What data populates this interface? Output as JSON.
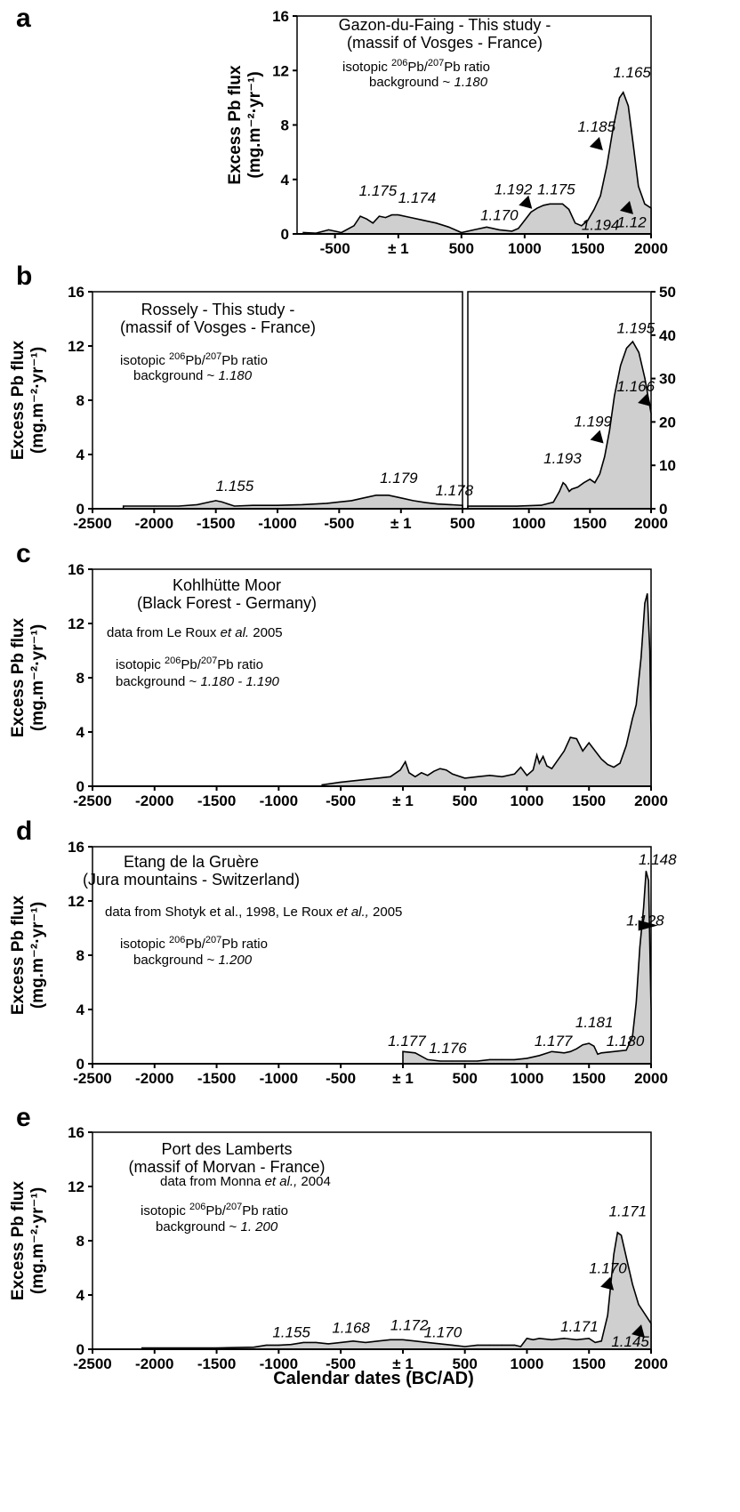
{
  "x_axis_label": "Calendar dates (BC/AD)",
  "y_axis_label_line1": "Excess Pb flux",
  "y_axis_label_line2": "(mg.m⁻²·yr⁻¹)",
  "colors": {
    "fill": "#cfcfcf",
    "line": "#000000",
    "background": "#ffffff"
  },
  "icons": [
    "triangle-arrow-icon"
  ],
  "chart_data": [
    {
      "panel": "a",
      "type": "area",
      "text_lines": [
        "Gazon-du-Faing - This study -",
        "(massif of Vosges - France)"
      ],
      "isotope_label": [
        "isotopic ",
        "206",
        "Pb/",
        "207",
        "Pb ratio"
      ],
      "background_label": [
        "background ~ ",
        "1.180"
      ],
      "ylabel": "Excess Pb flux (mg.m⁻²·yr⁻¹)",
      "xlim": [
        -800,
        2000
      ],
      "ylim": [
        0,
        16
      ],
      "yticks": [
        0,
        4,
        8,
        12,
        16
      ],
      "xticks": [
        -500,
        1,
        500,
        1000,
        1500,
        2000
      ],
      "xtick_labels": [
        "-500",
        "± 1",
        "500",
        "1000",
        "1500",
        "2000"
      ],
      "x": [
        -750,
        -650,
        -550,
        -450,
        -350,
        -300,
        -250,
        -200,
        -150,
        -100,
        -50,
        0,
        100,
        200,
        300,
        400,
        500,
        600,
        700,
        800,
        900,
        950,
        1000,
        1050,
        1100,
        1150,
        1200,
        1300,
        1350,
        1400,
        1450,
        1500,
        1550,
        1600,
        1650,
        1700,
        1750,
        1780,
        1820,
        1860,
        1900,
        1950,
        2000
      ],
      "values": [
        0.1,
        0.05,
        0.3,
        0.1,
        0.6,
        1.3,
        1.1,
        0.8,
        1.3,
        1.2,
        1.4,
        1.4,
        1.2,
        1.0,
        0.8,
        0.5,
        0.1,
        0.3,
        0.5,
        0.3,
        0.2,
        0.4,
        1.0,
        1.6,
        1.9,
        2.1,
        2.2,
        2.2,
        1.8,
        0.8,
        0.6,
        1.0,
        1.8,
        2.8,
        5.0,
        7.8,
        10.0,
        10.4,
        9.4,
        6.5,
        3.5,
        2.2,
        1.9
      ],
      "annotations": [
        {
          "text": "1.175",
          "x": -310,
          "y": 2.8
        },
        {
          "text": "1.174",
          "x": 0,
          "y": 2.3
        },
        {
          "text": "1.192",
          "x": 760,
          "y": 2.9
        },
        {
          "text": "1.175",
          "x": 1100,
          "y": 2.9
        },
        {
          "text": "1.170",
          "x": 650,
          "y": 1.0
        },
        {
          "text": "1.185",
          "x": 1420,
          "y": 7.5
        },
        {
          "text": "1.165",
          "x": 1700,
          "y": 11.5
        },
        {
          "text": "1.194",
          "x": 1450,
          "y": 0.3
        },
        {
          "text": "1.12",
          "x": 1730,
          "y": 0.5
        }
      ],
      "arrows": [
        {
          "x": 1010,
          "y": 2.3,
          "dir": "down-right"
        },
        {
          "x": 1570,
          "y": 6.6,
          "dir": "down-right"
        },
        {
          "x": 1810,
          "y": 1.9,
          "dir": "down-right"
        }
      ]
    },
    {
      "panel": "b",
      "type": "area",
      "split_panel": true,
      "text_lines": [
        "Rossely - This study -",
        "(massif of Vosges - France)"
      ],
      "isotope_label": [
        "isotopic ",
        "206",
        "Pb/",
        "207",
        "Pb ratio"
      ],
      "background_label": [
        "background ~ ",
        "1.180"
      ],
      "left": {
        "xlim": [
          -2500,
          500
        ],
        "ylim": [
          0,
          16
        ],
        "yticks": [
          0,
          4,
          8,
          12,
          16
        ],
        "xticks": [
          -2500,
          -2000,
          -1500,
          -1000,
          -500,
          1,
          500
        ],
        "xtick_labels": [
          "-2500",
          "-2000",
          "-1500",
          "-1000",
          "-500",
          "± 1",
          "500"
        ],
        "x": [
          -2250,
          -2000,
          -1800,
          -1650,
          -1550,
          -1500,
          -1450,
          -1350,
          -1200,
          -1000,
          -800,
          -600,
          -400,
          -300,
          -200,
          -100,
          0,
          100,
          200,
          300,
          400,
          500
        ],
        "values": [
          0.2,
          0.2,
          0.2,
          0.3,
          0.5,
          0.6,
          0.5,
          0.2,
          0.25,
          0.25,
          0.3,
          0.4,
          0.6,
          0.8,
          1.0,
          1.0,
          0.8,
          0.6,
          0.45,
          0.35,
          0.3,
          0.25
        ],
        "annotations": [
          {
            "text": "1.155",
            "x": -1500,
            "y": 1.3
          },
          {
            "text": "1.179",
            "x": -170,
            "y": 1.9
          },
          {
            "text": "1.178",
            "x": 280,
            "y": 1.0
          }
        ]
      },
      "right": {
        "xlim": [
          500,
          2000
        ],
        "ylim": [
          0,
          50
        ],
        "yticks": [
          0,
          10,
          20,
          30,
          40,
          50
        ],
        "xticks": [
          1000,
          1500,
          2000
        ],
        "xtick_labels": [
          "1000",
          "1500",
          "2000"
        ],
        "x": [
          500,
          700,
          900,
          1100,
          1200,
          1250,
          1280,
          1300,
          1330,
          1350,
          1400,
          1450,
          1500,
          1540,
          1580,
          1620,
          1660,
          1700,
          1750,
          1800,
          1850,
          1900,
          1950,
          2000
        ],
        "values": [
          0.6,
          0.6,
          0.6,
          0.8,
          1.5,
          4.0,
          6.0,
          5.5,
          4.0,
          4.5,
          5.0,
          6.0,
          6.8,
          6.0,
          8.0,
          12.0,
          18.0,
          26.0,
          33.0,
          37.0,
          38.5,
          36.0,
          30.0,
          22.0
        ],
        "annotations": [
          {
            "text": "1.193",
            "x": 1120,
            "y": 10.5
          },
          {
            "text": "1.199",
            "x": 1370,
            "y": 19.0
          },
          {
            "text": "1.195",
            "x": 1720,
            "y": 40.5
          },
          {
            "text": "1.166",
            "x": 1720,
            "y": 27.0
          }
        ],
        "arrows": [
          {
            "x": 1560,
            "y": 16.5,
            "dir": "down-right"
          },
          {
            "x": 1950,
            "y": 25.0,
            "dir": "down-right"
          }
        ]
      }
    },
    {
      "panel": "c",
      "type": "area",
      "text_lines": [
        "Kohlhütte Moor",
        "(Black Forest - Germany)"
      ],
      "source": [
        "data from Le Roux ",
        "et al.",
        " 2005"
      ],
      "isotope_label": [
        "isotopic ",
        "206",
        "Pb/",
        "207",
        "Pb ratio"
      ],
      "background_label": [
        "background ~ ",
        "1.180 - 1.190"
      ],
      "xlim": [
        -2500,
        2000
      ],
      "ylim": [
        0,
        16
      ],
      "yticks": [
        0,
        4,
        8,
        12,
        16
      ],
      "xticks": [
        -2500,
        -2000,
        -1500,
        -1000,
        -500,
        1,
        500,
        1000,
        1500,
        2000
      ],
      "xtick_labels": [
        "-2500",
        "-2000",
        "-1500",
        "-1000",
        "-500",
        "± 1",
        "500",
        "1000",
        "1500",
        "2000"
      ],
      "x": [
        -650,
        -500,
        -300,
        -100,
        -20,
        20,
        50,
        100,
        150,
        200,
        250,
        300,
        350,
        400,
        500,
        600,
        700,
        800,
        900,
        950,
        1000,
        1050,
        1080,
        1100,
        1130,
        1160,
        1200,
        1300,
        1350,
        1400,
        1450,
        1500,
        1550,
        1600,
        1650,
        1700,
        1750,
        1800,
        1850,
        1880,
        1920,
        1950,
        1970,
        1990,
        2000
      ],
      "values": [
        0.1,
        0.3,
        0.5,
        0.7,
        1.2,
        1.8,
        1.0,
        0.7,
        1.0,
        0.8,
        1.1,
        1.3,
        1.2,
        0.9,
        0.6,
        0.7,
        0.8,
        0.7,
        0.9,
        1.4,
        0.8,
        1.2,
        2.3,
        1.7,
        2.2,
        1.5,
        1.3,
        2.6,
        3.6,
        3.5,
        2.6,
        3.2,
        2.6,
        2.0,
        1.6,
        1.4,
        1.7,
        3.0,
        5.0,
        6.0,
        9.5,
        13.5,
        14.2,
        10.0,
        3.6
      ],
      "annotations": []
    },
    {
      "panel": "d",
      "type": "area",
      "text_lines": [
        "Etang de la Gruère",
        "(Jura mountains - Switzerland)"
      ],
      "source": [
        "data from Shotyk et al., 1998, Le Roux ",
        "et al.,",
        " 2005"
      ],
      "isotope_label": [
        "isotopic ",
        "206",
        "Pb/",
        "207",
        "Pb ratio"
      ],
      "background_label": [
        "background ~ ",
        "1.200"
      ],
      "xlim": [
        -2500,
        2000
      ],
      "ylim": [
        0,
        16
      ],
      "yticks": [
        0,
        4,
        8,
        12,
        16
      ],
      "xticks": [
        -2500,
        -2000,
        -1500,
        -1000,
        -500,
        1,
        500,
        1000,
        1500,
        2000
      ],
      "xtick_labels": [
        "-2500",
        "-2000",
        "-1500",
        "-1000",
        "-500",
        "± 1",
        "500",
        "1000",
        "1500",
        "2000"
      ],
      "x": [
        1,
        100,
        200,
        300,
        400,
        500,
        600,
        700,
        800,
        900,
        1000,
        1100,
        1200,
        1300,
        1350,
        1400,
        1450,
        1500,
        1540,
        1570,
        1600,
        1700,
        1800,
        1850,
        1880,
        1910,
        1940,
        1960,
        1980,
        2000
      ],
      "values": [
        0.9,
        0.8,
        0.3,
        0.2,
        0.2,
        0.2,
        0.2,
        0.3,
        0.3,
        0.3,
        0.4,
        0.6,
        0.9,
        0.8,
        0.9,
        1.1,
        1.4,
        1.5,
        1.3,
        0.7,
        0.8,
        0.9,
        1.0,
        2.0,
        4.5,
        8.6,
        11.5,
        14.2,
        13.5,
        4.0
      ],
      "annotations": [
        {
          "text": "1.177",
          "x": -120,
          "y": 1.3
        },
        {
          "text": "1.176",
          "x": 210,
          "y": 0.8
        },
        {
          "text": "1.177",
          "x": 1060,
          "y": 1.3
        },
        {
          "text": "1.181",
          "x": 1390,
          "y": 2.7
        },
        {
          "text": "1.180",
          "x": 1640,
          "y": 1.3
        },
        {
          "text": "1.148",
          "x": 1900,
          "y": 14.7
        },
        {
          "text": "1.128",
          "x": 1800,
          "y": 10.2
        }
      ],
      "arrows": [
        {
          "x": 1955,
          "y": 10.2,
          "dir": "right"
        }
      ]
    },
    {
      "panel": "e",
      "type": "area",
      "text_lines": [
        "Port des Lamberts",
        "(massif of Morvan - France)"
      ],
      "source": [
        "data from Monna  ",
        "et al.,",
        " 2004"
      ],
      "isotope_label": [
        "isotopic ",
        "206",
        "Pb/",
        "207",
        "Pb ratio"
      ],
      "background_label": [
        "background ~ ",
        "1. 200"
      ],
      "xlim": [
        -2500,
        2000
      ],
      "ylim": [
        0,
        16
      ],
      "yticks": [
        0,
        4,
        8,
        12,
        16
      ],
      "xticks": [
        -2500,
        -2000,
        -1500,
        -1000,
        -500,
        1,
        500,
        1000,
        1500,
        2000
      ],
      "xtick_labels": [
        "-2500",
        "-2000",
        "-1500",
        "-1000",
        "-500",
        "± 1",
        "500",
        "1000",
        "1500",
        "2000"
      ],
      "x": [
        -2100,
        -1500,
        -1200,
        -1100,
        -1000,
        -900,
        -800,
        -700,
        -600,
        -500,
        -400,
        -300,
        -200,
        -100,
        0,
        100,
        200,
        300,
        400,
        500,
        600,
        700,
        800,
        900,
        950,
        1000,
        1050,
        1100,
        1200,
        1300,
        1400,
        1500,
        1550,
        1600,
        1650,
        1700,
        1730,
        1760,
        1800,
        1850,
        1900,
        1950,
        2000
      ],
      "values": [
        0.1,
        0.1,
        0.15,
        0.3,
        0.3,
        0.35,
        0.5,
        0.5,
        0.4,
        0.5,
        0.6,
        0.5,
        0.6,
        0.7,
        0.7,
        0.6,
        0.5,
        0.4,
        0.3,
        0.2,
        0.3,
        0.3,
        0.3,
        0.3,
        0.2,
        0.8,
        0.7,
        0.8,
        0.7,
        0.8,
        0.7,
        0.8,
        0.5,
        0.6,
        2.5,
        7.0,
        8.6,
        8.4,
        6.8,
        4.8,
        3.3,
        2.6,
        1.9
      ],
      "annotations": [
        {
          "text": "1.155",
          "x": -1050,
          "y": 0.9
        },
        {
          "text": "1.168",
          "x": -570,
          "y": 1.2
        },
        {
          "text": "1.172",
          "x": -100,
          "y": 1.4
        },
        {
          "text": "1.170",
          "x": 170,
          "y": 0.9
        },
        {
          "text": "1.171",
          "x": 1270,
          "y": 1.3
        },
        {
          "text": "1.171",
          "x": 1660,
          "y": 9.8
        },
        {
          "text": "1.170",
          "x": 1500,
          "y": 5.6
        },
        {
          "text": "1.145",
          "x": 1680,
          "y": 0.2
        }
      ],
      "arrows": [
        {
          "x": 1650,
          "y": 4.8,
          "dir": "down-right"
        },
        {
          "x": 1900,
          "y": 1.3,
          "dir": "down-right"
        }
      ]
    }
  ]
}
